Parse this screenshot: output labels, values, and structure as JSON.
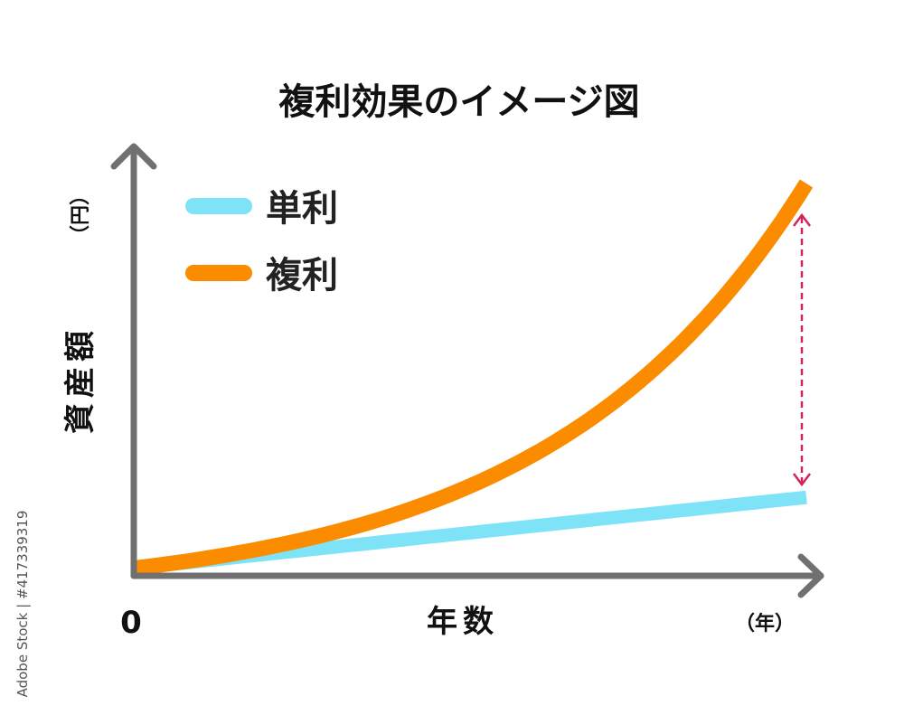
{
  "chart_data": {
    "type": "line",
    "title": "複利効果のイメージ図",
    "xlabel": "年数",
    "ylabel": "資産額",
    "x_unit": "（年）",
    "y_unit": "（円）",
    "origin_label": "0",
    "grid": false,
    "legend_placement": "top-left",
    "series": [
      {
        "name": "単利",
        "color": "#7fe3f7",
        "shape": "linear",
        "start": 0.02,
        "end": 0.2
      },
      {
        "name": "複利",
        "color": "#fb8c00",
        "shape": "exponential",
        "start": 0.02,
        "end": 1.0
      }
    ],
    "annotation": {
      "type": "double-arrow",
      "style": "dashed",
      "color": "#d0245a"
    },
    "axis_color": "#707070"
  },
  "watermark": "Adobe Stock | #417339319"
}
